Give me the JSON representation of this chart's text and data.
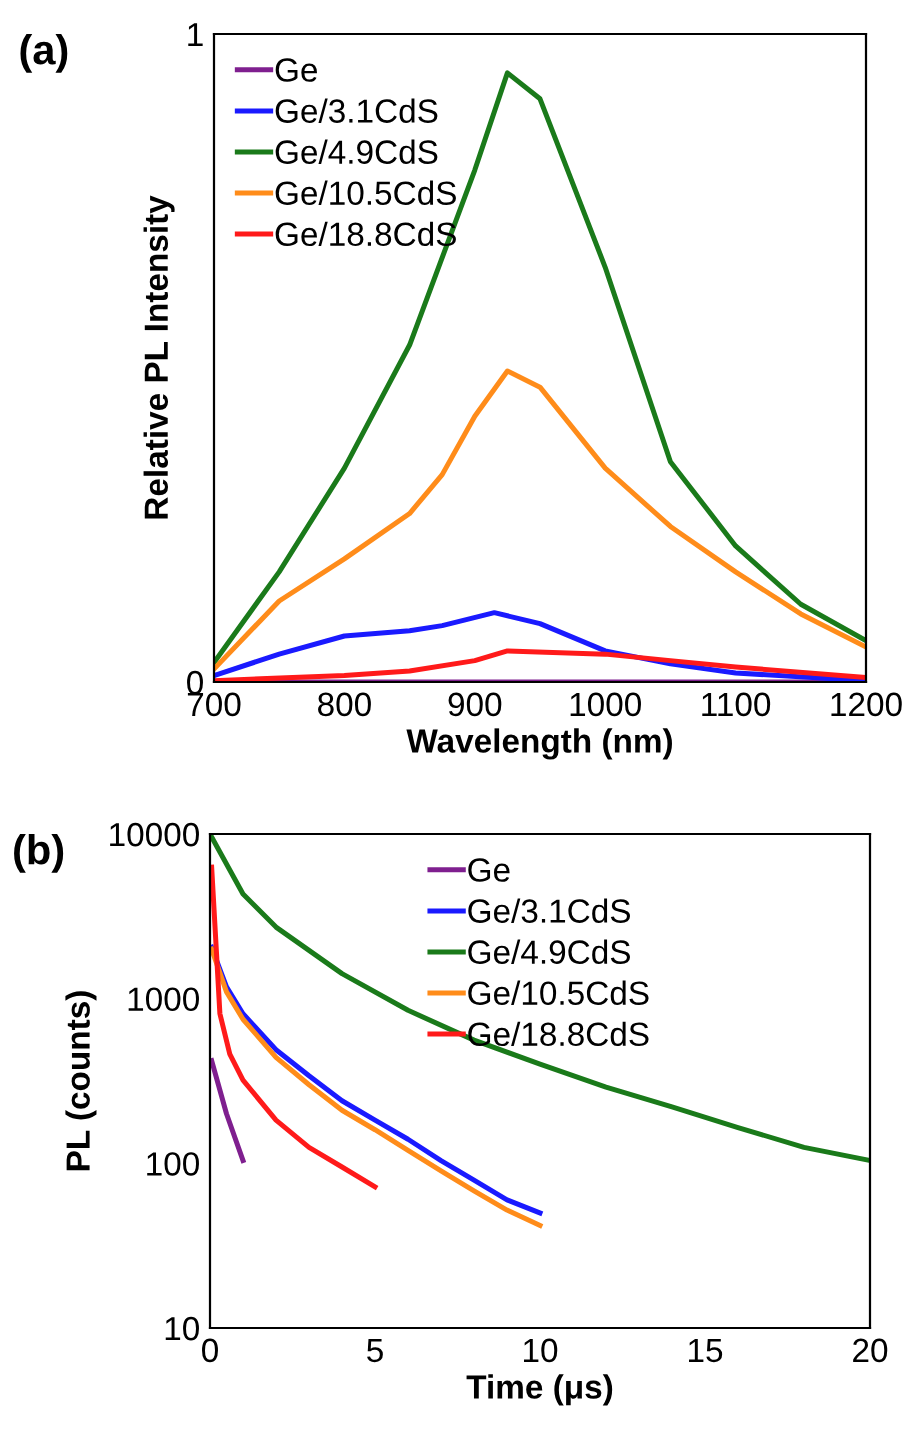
{
  "chart_data": [
    {
      "type": "line",
      "xlabel": "Wavelength (nm)",
      "ylabel": "Relative PL Intensity",
      "annotations": [
        "(a)"
      ],
      "xlim": [
        700,
        1200
      ],
      "xticks": [
        700,
        800,
        900,
        1000,
        1100,
        1200
      ],
      "ylim": [
        0,
        1
      ],
      "yticks": [
        0,
        1
      ],
      "grid": false,
      "legend": "top left",
      "marker": "none",
      "line_style": "solid",
      "series": [
        {
          "name": "Ge",
          "color": "#7f1f8f",
          "x": [
            700,
            800,
            900,
            1000,
            1100,
            1200
          ],
          "values": [
            0,
            0,
            0,
            0,
            0,
            0
          ]
        },
        {
          "name": "Ge/3.1CdS",
          "color": "#1a1aff",
          "x": [
            700,
            750,
            800,
            850,
            875,
            915,
            950,
            1000,
            1050,
            1100,
            1200
          ],
          "values": [
            0.01,
            0.043,
            0.071,
            0.079,
            0.087,
            0.107,
            0.09,
            0.048,
            0.028,
            0.014,
            0.002
          ]
        },
        {
          "name": "Ge/4.9CdS",
          "color": "#1a7a1a",
          "x": [
            700,
            750,
            800,
            850,
            900,
            925,
            950,
            1000,
            1050,
            1100,
            1150,
            1200
          ],
          "values": [
            0.03,
            0.17,
            0.33,
            0.52,
            0.79,
            0.94,
            0.9,
            0.64,
            0.34,
            0.21,
            0.12,
            0.064
          ]
        },
        {
          "name": "Ge/10.5CdS",
          "color": "#ff8c1a",
          "x": [
            700,
            750,
            800,
            850,
            875,
            900,
            925,
            950,
            1000,
            1050,
            1100,
            1150,
            1200
          ],
          "values": [
            0.02,
            0.125,
            0.19,
            0.26,
            0.32,
            0.41,
            0.48,
            0.455,
            0.33,
            0.24,
            0.17,
            0.105,
            0.054
          ]
        },
        {
          "name": "Ge/18.8CdS",
          "color": "#ff1a1a",
          "x": [
            700,
            800,
            850,
            900,
            925,
            1000,
            1050,
            1100,
            1200
          ],
          "values": [
            0.002,
            0.01,
            0.017,
            0.033,
            0.048,
            0.043,
            0.033,
            0.023,
            0.007
          ]
        }
      ]
    },
    {
      "type": "line",
      "xlabel": "Time (μs)",
      "ylabel": "PL (counts)",
      "annotations": [
        "(b)"
      ],
      "log": "y",
      "xlim": [
        0,
        20
      ],
      "xticks": [
        0,
        5,
        10,
        15,
        20
      ],
      "ylim": [
        10,
        10000
      ],
      "yticks": [
        10,
        100,
        1000,
        10000
      ],
      "grid": false,
      "legend": "top",
      "marker": "none",
      "line_style": "solid",
      "series": [
        {
          "name": "Ge",
          "color": "#7f1f8f",
          "x": [
            0.05,
            0.5,
            1
          ],
          "values": [
            420,
            200,
            104
          ]
        },
        {
          "name": "Ge/3.1CdS",
          "color": "#1a1aff",
          "x": [
            0.05,
            0.5,
            1,
            2,
            3,
            4,
            5,
            6,
            7,
            8,
            9,
            10
          ],
          "values": [
            2050,
            1180,
            810,
            490,
            340,
            240,
            183,
            140,
            104,
            79,
            60,
            50
          ]
        },
        {
          "name": "Ge/4.9CdS",
          "color": "#1a7a1a",
          "x": [
            0,
            1,
            2,
            4,
            6,
            8,
            10,
            12,
            14,
            16,
            18,
            20
          ],
          "values": [
            10000,
            4320,
            2720,
            1420,
            850,
            560,
            400,
            290,
            220,
            165,
            125,
            104
          ]
        },
        {
          "name": "Ge/10.5CdS",
          "color": "#ff8c1a",
          "x": [
            0.05,
            0.5,
            1,
            2,
            3,
            4,
            5,
            6,
            7,
            8,
            9,
            10
          ],
          "values": [
            2000,
            1100,
            750,
            440,
            300,
            210,
            160,
            120,
            90,
            68,
            52,
            42
          ]
        },
        {
          "name": "Ge/18.8CdS",
          "color": "#ff1a1a",
          "x": [
            0.05,
            0.3,
            0.6,
            1,
            2,
            3,
            4,
            5
          ],
          "values": [
            6300,
            810,
            460,
            320,
            183,
            125,
            95,
            72
          ]
        }
      ]
    }
  ]
}
